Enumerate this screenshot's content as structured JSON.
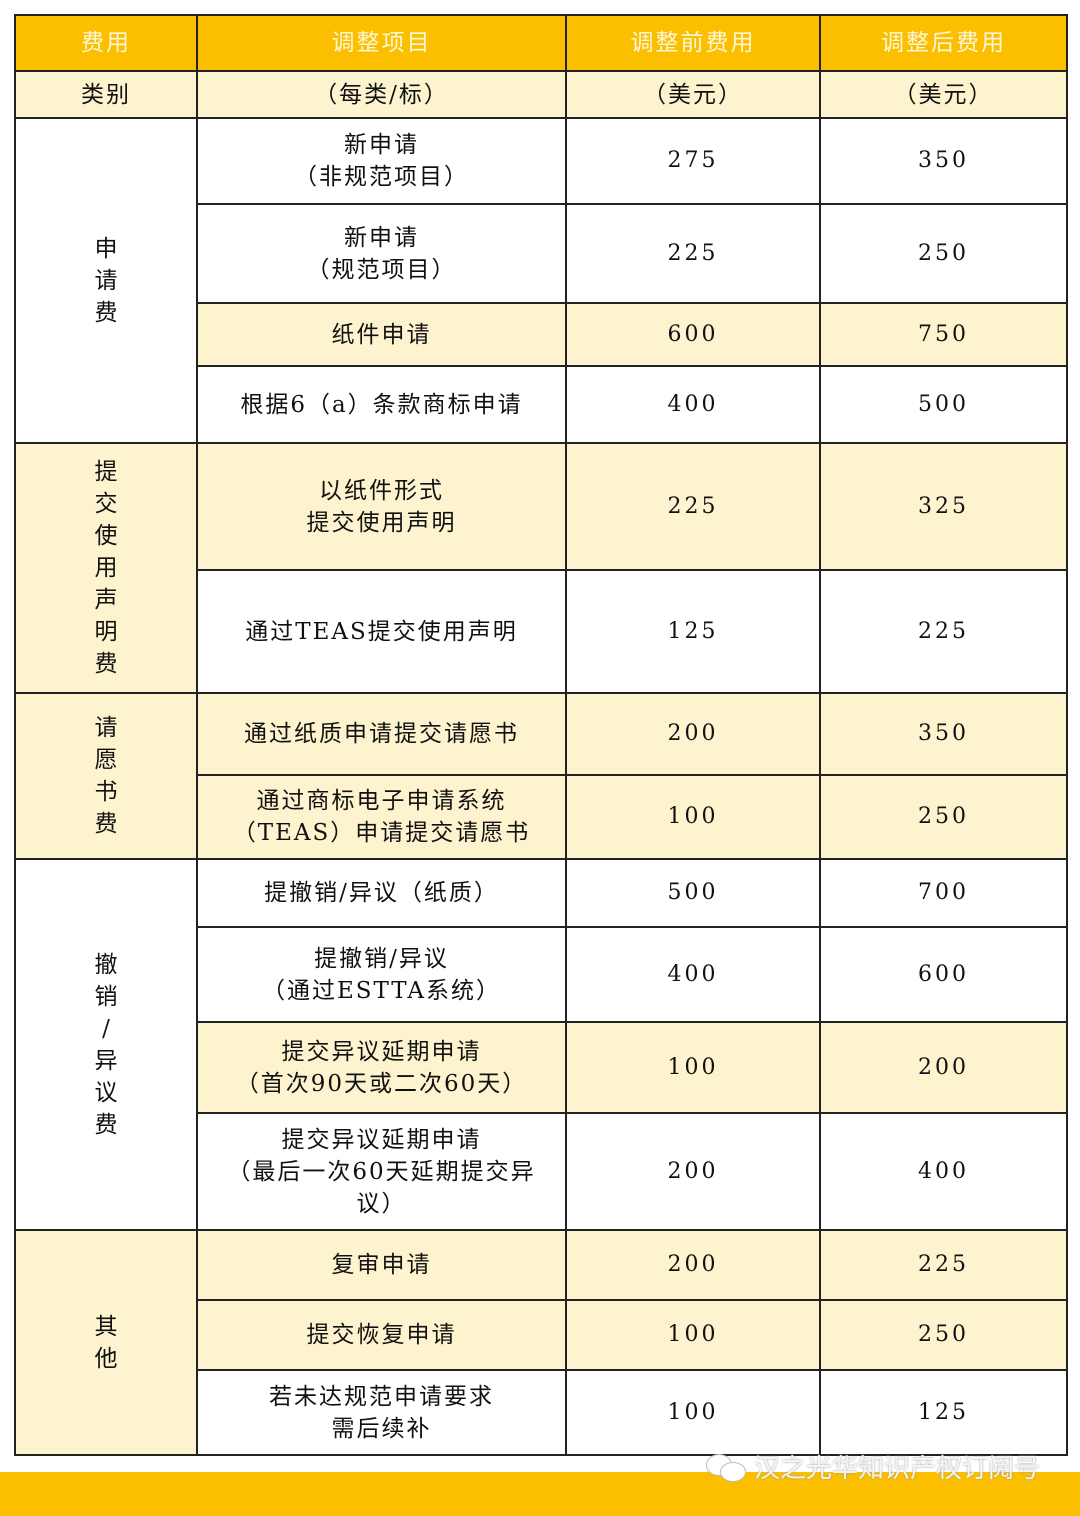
{
  "header": {
    "col1": "费用",
    "col2": "调整项目",
    "col3": "调整前费用",
    "col4": "调整后费用"
  },
  "subheader": {
    "col1": "类别",
    "col2": "（每类/标）",
    "col3": "（美元）",
    "col4": "（美元）"
  },
  "groups": [
    {
      "category": "申请费",
      "shaded": false,
      "rows": [
        {
          "item": [
            "新申请",
            "（非规范项目）"
          ],
          "before": "275",
          "after": "350",
          "shaded": false
        },
        {
          "item": [
            "新申请",
            "（规范项目）"
          ],
          "before": "225",
          "after": "250",
          "shaded": false
        },
        {
          "item": [
            "纸件申请"
          ],
          "before": "600",
          "after": "750",
          "shaded": true
        },
        {
          "item": [
            "根据6（a）条款商标申请"
          ],
          "before": "400",
          "after": "500",
          "shaded": false
        }
      ]
    },
    {
      "category": "提交使用声明费",
      "shaded": true,
      "rows": [
        {
          "item": [
            "以纸件形式",
            "提交使用声明"
          ],
          "before": "225",
          "after": "325",
          "shaded": true
        },
        {
          "item": [
            "通过TEAS提交使用声明"
          ],
          "before": "125",
          "after": "225",
          "shaded": false
        }
      ]
    },
    {
      "category": "请愿书费",
      "shaded": true,
      "rows": [
        {
          "item": [
            "通过纸质申请提交请愿书"
          ],
          "before": "200",
          "after": "350",
          "shaded": true
        },
        {
          "item": [
            "通过商标电子申请系统",
            "（TEAS）申请提交请愿书"
          ],
          "before": "100",
          "after": "250",
          "shaded": true
        }
      ]
    },
    {
      "category": "撤销/异议费",
      "shaded": false,
      "rows": [
        {
          "item": [
            "提撤销/异议（纸质）"
          ],
          "before": "500",
          "after": "700",
          "shaded": false
        },
        {
          "item": [
            "提撤销/异议",
            "（通过ESTTA系统）"
          ],
          "before": "400",
          "after": "600",
          "shaded": false
        },
        {
          "item": [
            "提交异议延期申请",
            "（首次90天或二次60天）"
          ],
          "before": "100",
          "after": "200",
          "shaded": true
        },
        {
          "item": [
            "提交异议延期申请",
            "（最后一次60天延期提交异",
            "议）"
          ],
          "before": "200",
          "after": "400",
          "shaded": false
        }
      ]
    },
    {
      "category": "其他",
      "shaded": true,
      "rows": [
        {
          "item": [
            "复审申请"
          ],
          "before": "200",
          "after": "225",
          "shaded": true
        },
        {
          "item": [
            "提交恢复申请"
          ],
          "before": "100",
          "after": "250",
          "shaded": true
        },
        {
          "item": [
            "若未达规范申请要求",
            "需后续补"
          ],
          "before": "100",
          "after": "125",
          "shaded": false
        }
      ]
    }
  ],
  "watermark": {
    "text": "汉之光华知识产权订阅号",
    "icon": "wechat-icon"
  },
  "colors": {
    "header": "#fbbf00",
    "shade": "#fdf3cf"
  }
}
